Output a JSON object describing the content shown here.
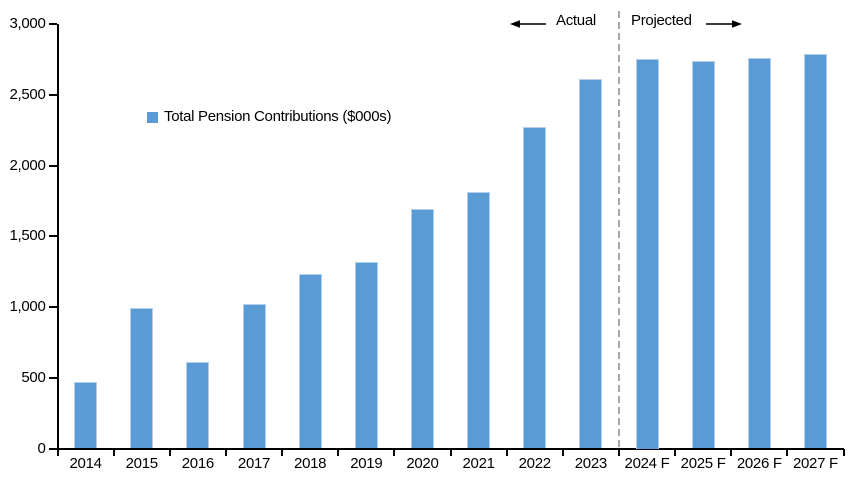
{
  "chart_data": {
    "type": "bar",
    "title": "",
    "legend_label": "Total Pension Contributions ($000s)",
    "legend_position": "inside-upper-left",
    "categories": [
      "2014",
      "2015",
      "2016",
      "2017",
      "2018",
      "2019",
      "2020",
      "2021",
      "2022",
      "2023",
      "2024 F",
      "2025 F",
      "2026 F",
      "2027 F"
    ],
    "values": [
      470,
      990,
      610,
      1020,
      1230,
      1320,
      1690,
      1810,
      2270,
      2610,
      2750,
      2740,
      2760,
      2790
    ],
    "xlabel": "",
    "ylabel": "",
    "ylim": [
      0,
      3000
    ],
    "ytick_interval": 500,
    "ytick_labels": [
      "0",
      "500",
      "1,000",
      "1,500",
      "2,000",
      "2,500",
      "3,000"
    ],
    "grid": false,
    "annotations": {
      "actual_label": "Actual",
      "projected_label": "Projected",
      "actual_arrow_icon": "left-arrow-icon",
      "projected_arrow_icon": "right-arrow-icon",
      "divider_between": [
        "2023",
        "2024 F"
      ],
      "divider_style": "dashed"
    },
    "colors": {
      "bar_fill": "#5B9BD5",
      "bar_border": "#B5CFEA",
      "axis": "#000000",
      "divider": "#A6A6A6",
      "text": "#000000"
    }
  }
}
